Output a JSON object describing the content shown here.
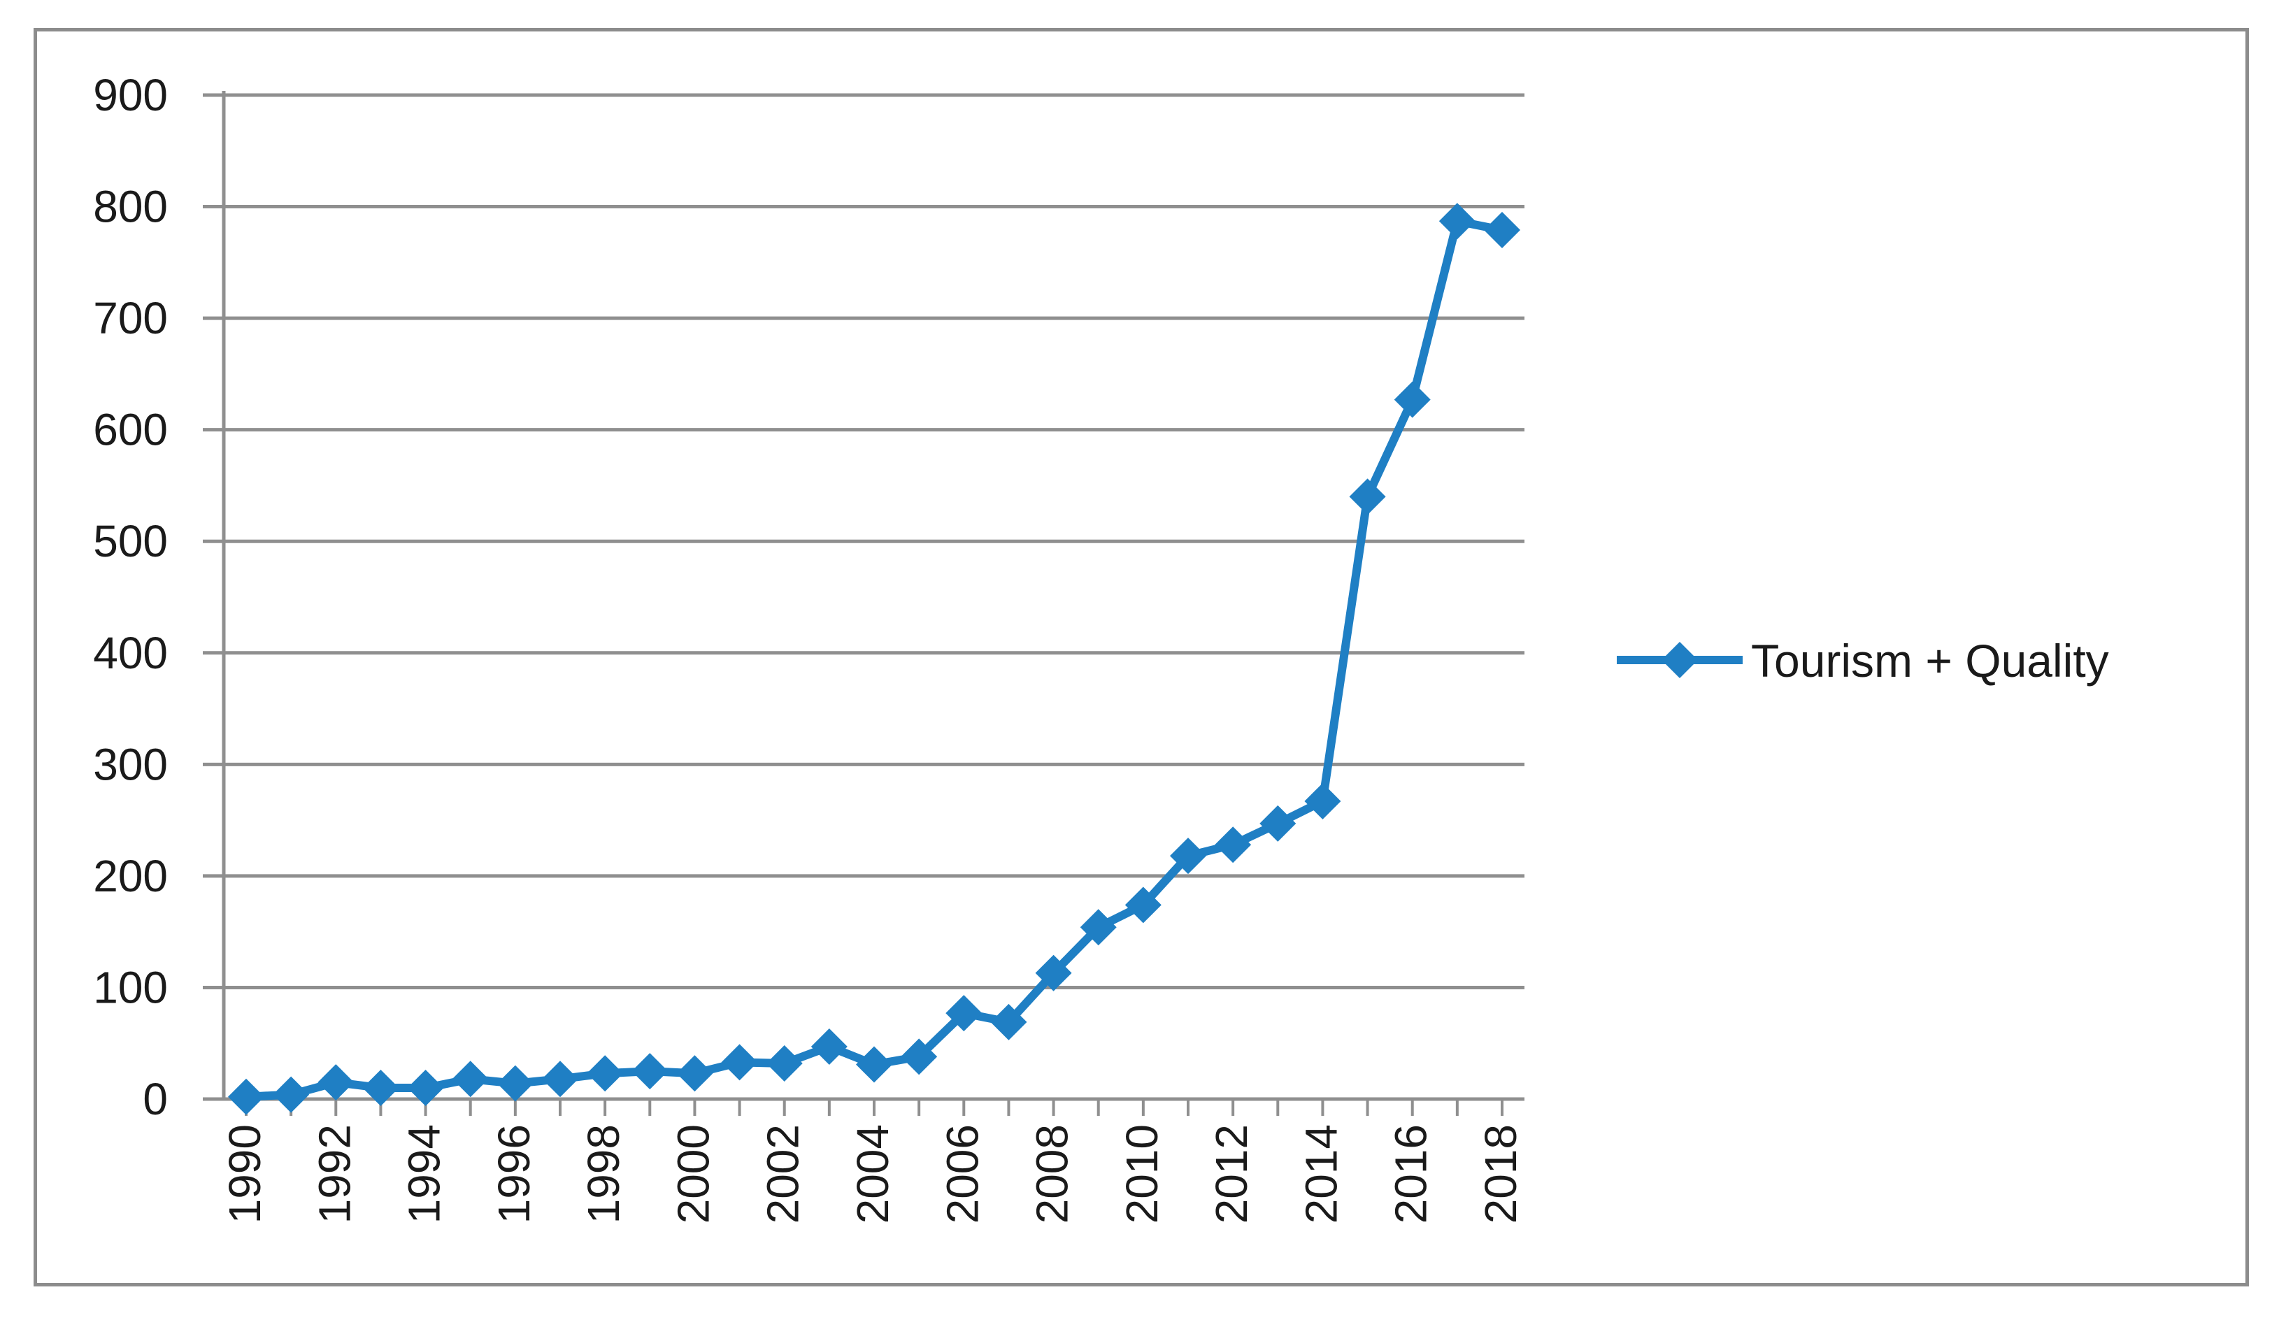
{
  "chart_data": {
    "type": "line",
    "title": "",
    "xlabel": "",
    "ylabel": "",
    "ylim": [
      0,
      900
    ],
    "yticks": [
      0,
      100,
      200,
      300,
      400,
      500,
      600,
      700,
      800,
      900
    ],
    "x": [
      1990,
      1991,
      1992,
      1993,
      1994,
      1995,
      1996,
      1997,
      1998,
      1999,
      2000,
      2001,
      2002,
      2003,
      2004,
      2005,
      2006,
      2007,
      2008,
      2009,
      2010,
      2011,
      2012,
      2013,
      2014,
      2015,
      2016,
      2017,
      2018
    ],
    "x_tick_labels": [
      "1990",
      "1992",
      "1994",
      "1996",
      "1998",
      "2000",
      "2002",
      "2004",
      "2006",
      "2008",
      "2010",
      "2012",
      "2014",
      "2016",
      "2018"
    ],
    "series": [
      {
        "name": "Tourism + Quality",
        "color": "#1f7fc4",
        "marker": "diamond",
        "values": [
          2,
          4,
          15,
          10,
          10,
          18,
          14,
          18,
          23,
          25,
          23,
          33,
          32,
          47,
          31,
          38,
          77,
          69,
          113,
          154,
          174,
          218,
          228,
          247,
          267,
          540,
          627,
          787,
          779
        ]
      }
    ],
    "grid": "horizontal",
    "legend_position": "right"
  }
}
